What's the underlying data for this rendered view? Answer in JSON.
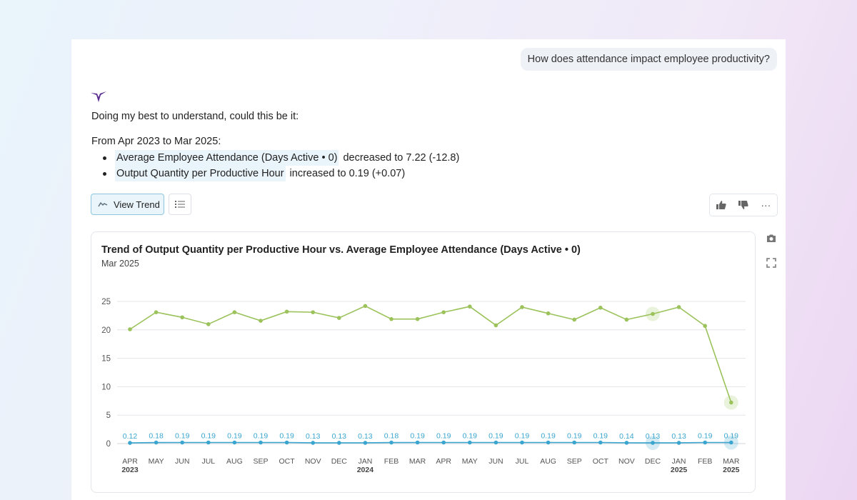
{
  "user_question": "How does attendance impact employee productivity?",
  "response": {
    "intro": "Doing my best to understand, could this be it:",
    "period": "From Apr 2023 to Mar 2025:",
    "insights": [
      {
        "metric": "Average Employee Attendance (Days Active • 0)",
        "text": "decreased to 7.22 (-12.8)"
      },
      {
        "metric": "Output Quantity per Productive Hour",
        "text": "increased to 0.19 (+0.07)"
      }
    ]
  },
  "toolbar": {
    "view_trend_label": "View Trend",
    "list_icon": "list-icon",
    "feedback_icons": [
      "thumbs-up-icon",
      "thumbs-down-icon",
      "more-icon"
    ],
    "more_label": "···"
  },
  "side_icons": [
    "camera-icon",
    "expand-icon"
  ],
  "colors": {
    "attendance": "#9bc25b",
    "output": "#3aa6cf",
    "accent_bg": "#eaf4fb",
    "brand": "#5b2d91"
  },
  "chart_data": {
    "type": "line",
    "title": "Trend of Output Quantity per Productive Hour vs. Average Employee Attendance (Days Active • 0)",
    "subtitle": "Mar 2025",
    "x_months": [
      "APR",
      "MAY",
      "JUN",
      "JUL",
      "AUG",
      "SEP",
      "OCT",
      "NOV",
      "DEC",
      "JAN",
      "FEB",
      "MAR",
      "APR",
      "MAY",
      "JUN",
      "JUL",
      "AUG",
      "SEP",
      "OCT",
      "NOV",
      "DEC",
      "JAN",
      "FEB",
      "MAR"
    ],
    "x_years": [
      "2023",
      "",
      "",
      "",
      "",
      "",
      "",
      "",
      "",
      "2024",
      "",
      "",
      "",
      "",
      "",
      "",
      "",
      "",
      "",
      "",
      "",
      "2025",
      "",
      "2025"
    ],
    "yticks": [
      0,
      5,
      10,
      15,
      20,
      25
    ],
    "ylim": [
      0,
      25
    ],
    "grid": true,
    "highlighted_points": [
      "DEC 2024",
      "MAR 2025"
    ],
    "series": [
      {
        "values": [
          20.1,
          23.1,
          22.2,
          21.0,
          23.1,
          21.6,
          23.2,
          23.1,
          22.1,
          24.2,
          21.9,
          21.9,
          23.1,
          24.1,
          20.8,
          24.0,
          22.9,
          21.8,
          23.9,
          21.8,
          22.8,
          24.0,
          20.7,
          7.22
        ]
      },
      {
        "values": [
          0.12,
          0.18,
          0.19,
          0.19,
          0.19,
          0.19,
          0.19,
          0.13,
          0.13,
          0.13,
          0.18,
          0.19,
          0.19,
          0.19,
          0.19,
          0.19,
          0.19,
          0.19,
          0.19,
          0.14,
          0.13,
          0.13,
          0.19,
          0.19
        ],
        "labels": [
          "0.12",
          "0.18",
          "0.19",
          "0.19",
          "0.19",
          "0.19",
          "0.19",
          "0.13",
          "0.13",
          "0.13",
          "0.18",
          "0.19",
          "0.19",
          "0.19",
          "0.19",
          "0.19",
          "0.19",
          "0.19",
          "0.19",
          "0.14",
          "0.13",
          "0.13",
          "0.19",
          "0.19"
        ]
      }
    ]
  }
}
